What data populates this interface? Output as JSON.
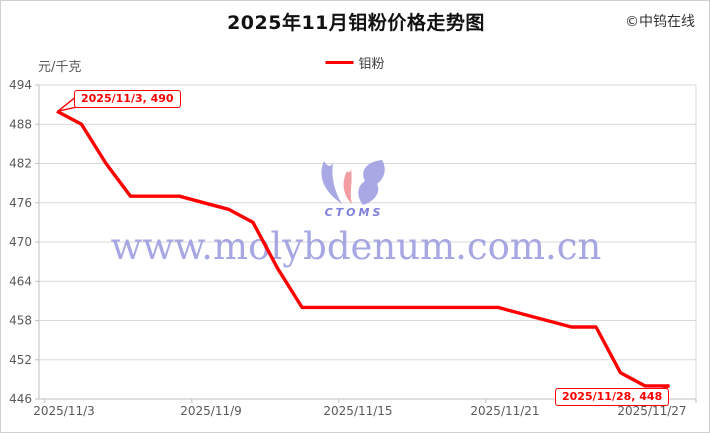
{
  "header": {
    "title": "2025年11月钼粉价格走势图",
    "copyright": "©中钨在线"
  },
  "legend": {
    "series_label": "钼粉"
  },
  "axes": {
    "y_unit": "元/千克"
  },
  "watermark": {
    "url_text": "www.molybdenum.com.cn",
    "logo_text": "CTOMS"
  },
  "annotations": {
    "start": "2025/11/3, 490",
    "end": "2025/11/28, 448"
  },
  "colors": {
    "line": "#ff0000",
    "grid": "#d9d9d9",
    "axis": "#bfbfbf",
    "tick_text": "#595959",
    "watermark": "#9898e0",
    "logo_purple": "#9e9ee2",
    "logo_pink": "#f2989e"
  },
  "chart_data": {
    "type": "line",
    "title": "2025年11月钼粉价格走势图",
    "ylabel": "元/千克",
    "legend_position": "top",
    "grid": "horizontal",
    "ylim": [
      446,
      494
    ],
    "yticks": [
      494,
      488,
      482,
      476,
      470,
      464,
      458,
      452,
      446
    ],
    "x_tick_labels": [
      "2025/11/3",
      "2025/11/9",
      "2025/11/15",
      "2025/11/21",
      "2025/11/27"
    ],
    "x": [
      "2025/11/3",
      "2025/11/4",
      "2025/11/5",
      "2025/11/6",
      "2025/11/7",
      "2025/11/8",
      "2025/11/9",
      "2025/11/10",
      "2025/11/11",
      "2025/11/12",
      "2025/11/13",
      "2025/11/14",
      "2025/11/15",
      "2025/11/16",
      "2025/11/17",
      "2025/11/18",
      "2025/11/19",
      "2025/11/20",
      "2025/11/21",
      "2025/11/22",
      "2025/11/23",
      "2025/11/24",
      "2025/11/25",
      "2025/11/26",
      "2025/11/27",
      "2025/11/28"
    ],
    "series": [
      {
        "name": "钼粉",
        "color": "#ff0000",
        "values": [
          490,
          488,
          482,
          477,
          477,
          477,
          476,
          475,
          473,
          466,
          460,
          460,
          460,
          460,
          460,
          460,
          460,
          460,
          460,
          459,
          458,
          457,
          457,
          450,
          448,
          448
        ]
      }
    ],
    "annotations": [
      {
        "label": "2025/11/3, 490",
        "x": "2025/11/3",
        "y": 490
      },
      {
        "label": "2025/11/28, 448",
        "x": "2025/11/28",
        "y": 448
      }
    ]
  }
}
